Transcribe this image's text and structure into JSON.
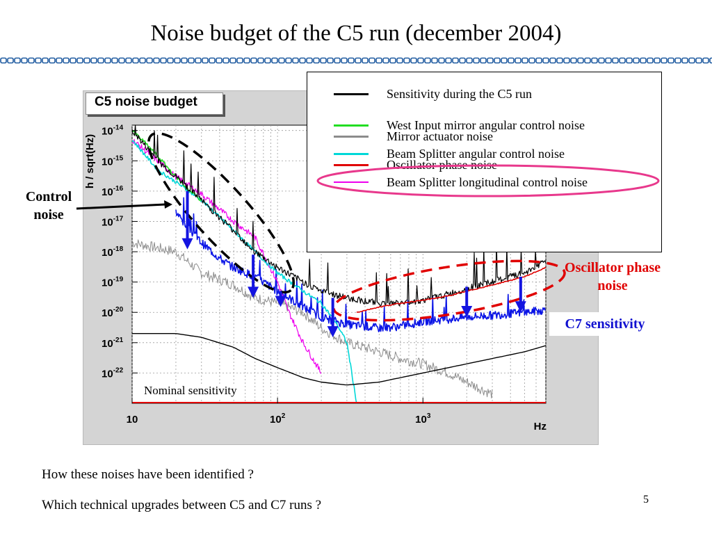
{
  "slide": {
    "title": "Noise budget of the C5 run (december 2004)",
    "page_number": "5",
    "questions": [
      "How these noises have been identified ?",
      "Which technical upgrades between C5 and C7 runs ?"
    ]
  },
  "annotations": {
    "control_noise": "Control noise",
    "oscillator_phase_noise": "Oscillator phase noise",
    "c7_sensitivity": "C7 sensitivity",
    "nominal_sensitivity": "Nominal sensitivity"
  },
  "colors": {
    "sensitivity": "#000000",
    "west_input": "#22dd22",
    "beam_splitter_angular": "#00d8d8",
    "beam_splitter_longitudinal": "#ee00ee",
    "mirror_actuator": "#8c8c8c",
    "oscillator": "#e00000",
    "c7": "#0a14e6",
    "highlight_ellipse": "#e8388c",
    "arrow": "#1414e0",
    "divider": "#1e5aa0"
  },
  "chart_data": {
    "type": "line",
    "title": "C5 noise budget",
    "xlabel": "Hz",
    "ylabel": "h / sqrt(Hz)",
    "xscale": "log",
    "yscale": "log",
    "xlim": [
      10,
      7000
    ],
    "ylim": [
      1e-23,
      1.5e-14
    ],
    "grid": true,
    "legend_position": "top-right",
    "x_ticks": [
      {
        "base": "10",
        "exp": ""
      },
      {
        "base": "10",
        "exp": "2"
      },
      {
        "base": "10",
        "exp": "3"
      }
    ],
    "y_ticks": [
      {
        "base": "10",
        "exp": "-14"
      },
      {
        "base": "10",
        "exp": "-15"
      },
      {
        "base": "10",
        "exp": "-16"
      },
      {
        "base": "10",
        "exp": "-17"
      },
      {
        "base": "10",
        "exp": "-18"
      },
      {
        "base": "10",
        "exp": "-19"
      },
      {
        "base": "10",
        "exp": "-20"
      },
      {
        "base": "10",
        "exp": "-21"
      },
      {
        "base": "10",
        "exp": "-22"
      }
    ],
    "legend": [
      {
        "label": "Sensitivity during the C5 run",
        "color_key": "sensitivity"
      },
      {
        "label": "West Input mirror angular control noise",
        "color_key": "west_input"
      },
      {
        "label": "Beam Splitter angular control noise",
        "color_key": "beam_splitter_angular"
      },
      {
        "label": "Beam Splitter longitudinal control noise",
        "color_key": "beam_splitter_longitudinal"
      },
      {
        "label": "Mirror actuator noise",
        "color_key": "mirror_actuator"
      },
      {
        "label": "Oscillator phase noise",
        "color_key": "oscillator"
      }
    ],
    "series": [
      {
        "key": "sensitivity",
        "name": "Sensitivity during the C5 run",
        "x": [
          10,
          15,
          20,
          30,
          50,
          70,
          100,
          150,
          200,
          300,
          500,
          700,
          1000,
          1500,
          2000,
          3000,
          5000,
          7000
        ],
        "y": [
          1e-14,
          1e-15,
          3e-16,
          5e-17,
          5e-18,
          1e-18,
          3e-19,
          1e-19,
          5e-20,
          3e-20,
          2e-20,
          2e-20,
          2.5e-20,
          4e-20,
          6e-20,
          1e-19,
          2e-19,
          5e-19
        ]
      },
      {
        "key": "west_input",
        "name": "West Input mirror angular control noise",
        "x": [
          10,
          13,
          16,
          20,
          25,
          30
        ],
        "y": [
          1e-14,
          3e-15,
          1e-15,
          3e-16,
          1e-16,
          5e-17
        ]
      },
      {
        "key": "beam_splitter_angular",
        "name": "Beam Splitter angular control noise",
        "x": [
          10,
          15,
          20,
          30,
          50,
          70,
          100,
          150,
          200,
          250,
          300,
          350
        ],
        "y": [
          5e-15,
          5e-16,
          2e-16,
          5e-17,
          5e-18,
          1e-18,
          2e-19,
          5e-20,
          2e-20,
          5e-21,
          1e-21,
          1e-23
        ]
      },
      {
        "key": "beam_splitter_longitudinal",
        "name": "Beam Splitter longitudinal control noise",
        "x": [
          10,
          15,
          20,
          30,
          50,
          70,
          100,
          120,
          150,
          200
        ],
        "y": [
          5e-15,
          1e-15,
          3e-16,
          8e-17,
          1e-17,
          3e-18,
          1e-19,
          1e-20,
          1e-21,
          1e-22
        ]
      },
      {
        "key": "mirror_actuator",
        "name": "Mirror actuator noise",
        "x": [
          10,
          20,
          30,
          50,
          70,
          100,
          150,
          200,
          300,
          500,
          700,
          1000,
          1500,
          2000,
          3000
        ],
        "y": [
          2e-18,
          1e-18,
          2e-19,
          8e-20,
          3e-20,
          2e-20,
          1e-20,
          3e-21,
          1e-21,
          5e-22,
          3e-22,
          2e-22,
          1e-22,
          5e-23,
          2e-23
        ]
      },
      {
        "key": "oscillator",
        "name": "Oscillator phase noise",
        "x": [
          350,
          500,
          700,
          1000,
          1500,
          2000,
          3000,
          5000,
          7000
        ],
        "y": [
          1e-20,
          1.5e-20,
          2e-20,
          2.5e-20,
          3.5e-20,
          5e-20,
          8e-20,
          1.5e-19,
          3e-19
        ]
      },
      {
        "key": "c7",
        "name": "C7 sensitivity",
        "x": [
          20,
          25,
          30,
          40,
          50,
          70,
          100,
          150,
          200,
          300,
          500,
          700,
          1000,
          1500,
          2000,
          3000,
          5000,
          7000
        ],
        "y": [
          2e-17,
          5e-18,
          2e-18,
          6e-19,
          3e-19,
          1.5e-19,
          5e-20,
          1.5e-20,
          7e-21,
          4e-21,
          3e-21,
          3.5e-21,
          5e-21,
          6e-21,
          7e-21,
          8e-21,
          1e-20,
          1.2e-20
        ]
      },
      {
        "key": "nominal",
        "name": "Nominal sensitivity",
        "x": [
          10,
          20,
          30,
          50,
          70,
          100,
          150,
          200,
          300,
          500,
          700,
          1000,
          1500,
          2000,
          3000,
          5000,
          7000
        ],
        "y": [
          2e-21,
          2e-21,
          1.5e-21,
          7e-22,
          3e-22,
          1.5e-22,
          7e-23,
          5e-23,
          4e-23,
          5e-23,
          7e-23,
          1e-22,
          1.5e-22,
          2e-22,
          3e-22,
          5e-22,
          8e-22
        ]
      }
    ]
  }
}
